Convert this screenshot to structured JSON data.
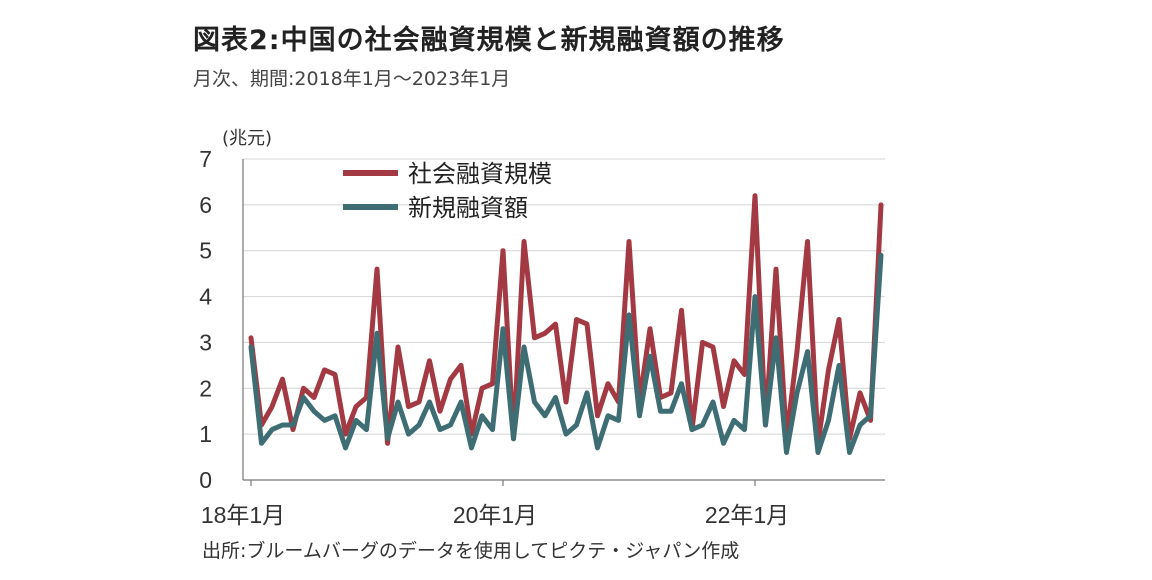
{
  "header": {
    "title": "図表2:中国の社会融資規模と新規融資額の推移",
    "subtitle": "月次、期間:2018年1月〜2023年1月"
  },
  "footer": {
    "source": "出所:ブルームバーグのデータを使用してピクテ・ジャパン作成"
  },
  "chart_data": {
    "type": "line",
    "unit_label": "(兆元)",
    "ylim": [
      0,
      7
    ],
    "y_ticks": [
      "0",
      "1",
      "2",
      "3",
      "4",
      "5",
      "6",
      "7"
    ],
    "x_tick_labels": [
      "18年1月",
      "20年1月",
      "22年1月"
    ],
    "x_tick_indices": [
      0,
      24,
      48
    ],
    "grid": true,
    "legend_position": "top-left",
    "series": [
      {
        "name": "社会融資規模",
        "color": "#a33a43",
        "values": [
          3.1,
          1.2,
          1.6,
          2.2,
          1.1,
          2.0,
          1.8,
          2.4,
          2.3,
          1.0,
          1.6,
          1.8,
          4.6,
          0.8,
          2.9,
          1.6,
          1.7,
          2.6,
          1.5,
          2.2,
          2.5,
          1.0,
          2.0,
          2.1,
          5.0,
          0.9,
          5.2,
          3.1,
          3.2,
          3.4,
          1.7,
          3.5,
          3.4,
          1.4,
          2.1,
          1.7,
          5.2,
          1.7,
          3.3,
          1.8,
          1.9,
          3.7,
          1.1,
          3.0,
          2.9,
          1.6,
          2.6,
          2.3,
          6.2,
          1.2,
          4.6,
          0.9,
          2.8,
          5.2,
          0.8,
          2.4,
          3.5,
          0.9,
          1.9,
          1.3,
          6.0
        ]
      },
      {
        "name": "新規融資額",
        "color": "#3e6e73",
        "values": [
          2.9,
          0.8,
          1.1,
          1.2,
          1.2,
          1.8,
          1.5,
          1.3,
          1.4,
          0.7,
          1.3,
          1.1,
          3.2,
          0.9,
          1.7,
          1.0,
          1.2,
          1.7,
          1.1,
          1.2,
          1.7,
          0.7,
          1.4,
          1.1,
          3.3,
          0.9,
          2.9,
          1.7,
          1.4,
          1.8,
          1.0,
          1.2,
          1.9,
          0.7,
          1.4,
          1.3,
          3.6,
          1.4,
          2.7,
          1.5,
          1.5,
          2.1,
          1.1,
          1.2,
          1.7,
          0.8,
          1.3,
          1.1,
          4.0,
          1.2,
          3.1,
          0.6,
          1.9,
          2.8,
          0.6,
          1.3,
          2.5,
          0.6,
          1.2,
          1.4,
          4.9
        ]
      }
    ]
  }
}
